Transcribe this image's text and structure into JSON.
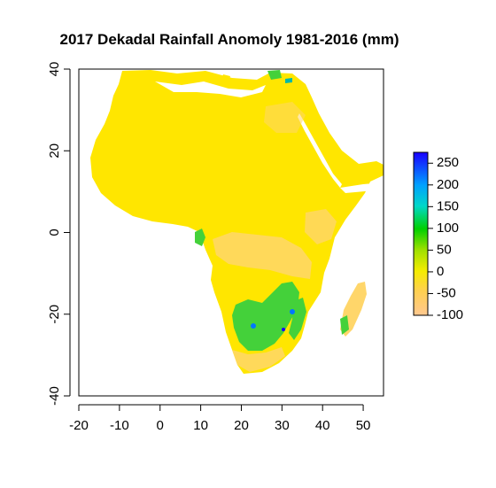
{
  "title": "2017 Dekadal Rainfall Anomoly 1981-2016 (mm)",
  "axes": {
    "x_ticks": [
      "-20",
      "-10",
      "0",
      "10",
      "20",
      "30",
      "40",
      "50"
    ],
    "y_ticks": [
      "-40",
      "-20",
      "0",
      "20",
      "40"
    ]
  },
  "legend": {
    "labels": [
      "250",
      "200",
      "150",
      "100",
      "50",
      "0",
      "-50",
      "-100"
    ],
    "colors": [
      "#1a00ff",
      "#00a0ff",
      "#00d8c8",
      "#00d000",
      "#a0e000",
      "#f5ec00",
      "#ffd050",
      "#ffc890"
    ]
  },
  "map_colors": {
    "ocean": "#ffffff",
    "land_base": "#ffe600",
    "land_dry": "#ffd66a",
    "land_wet": "#33cc33",
    "land_very_wet": "#0077ff"
  },
  "chart_data": {
    "type": "heatmap",
    "title": "2017 Dekadal Rainfall Anomoly 1981-2016 (mm)",
    "xlim": [
      -20,
      55
    ],
    "ylim": [
      -40,
      40
    ],
    "x_ticks": [
      -20,
      -10,
      0,
      10,
      20,
      30,
      40,
      50
    ],
    "y_ticks": [
      -40,
      -20,
      0,
      20,
      40
    ],
    "colorbar": {
      "min": -100,
      "max": 275,
      "ticks": [
        250,
        200,
        150,
        100,
        50,
        0,
        -50,
        -100
      ]
    },
    "grid": false,
    "legend_position": "right"
  }
}
